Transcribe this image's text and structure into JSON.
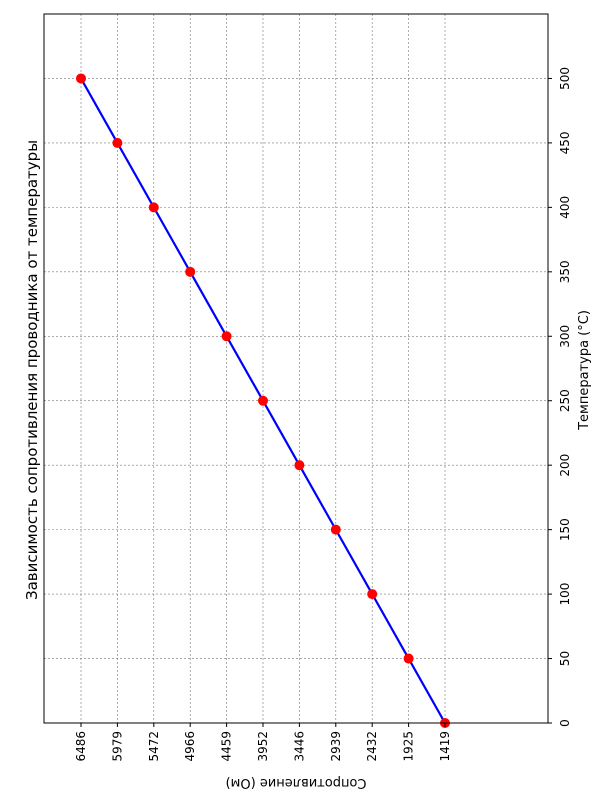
{
  "chart_data": {
    "type": "line",
    "orientation": "rotated",
    "title": "Зависимость сопротивления проводника от температуры",
    "xlabel": "Сопротивление (Ом)",
    "ylabel": "Температура (°C)",
    "x_tick_labels": [
      "6486",
      "5979",
      "5472",
      "4966",
      "4459",
      "3952",
      "3446",
      "2939",
      "2432",
      "1925",
      "1419"
    ],
    "y_tick_labels": [
      "0",
      "50",
      "100",
      "150",
      "200",
      "250",
      "300",
      "350",
      "400",
      "450",
      "500"
    ],
    "ylim": [
      0,
      550
    ],
    "grid": true,
    "line_color": "#0000ff",
    "marker_color": "#ff0000",
    "series": [
      {
        "x": [
          1419,
          1925,
          2432,
          2939,
          3446,
          3952,
          4459,
          4966,
          5472,
          5979,
          6486
        ],
        "y": [
          0,
          50,
          100,
          150,
          200,
          250,
          300,
          350,
          400,
          450,
          500
        ]
      }
    ]
  }
}
